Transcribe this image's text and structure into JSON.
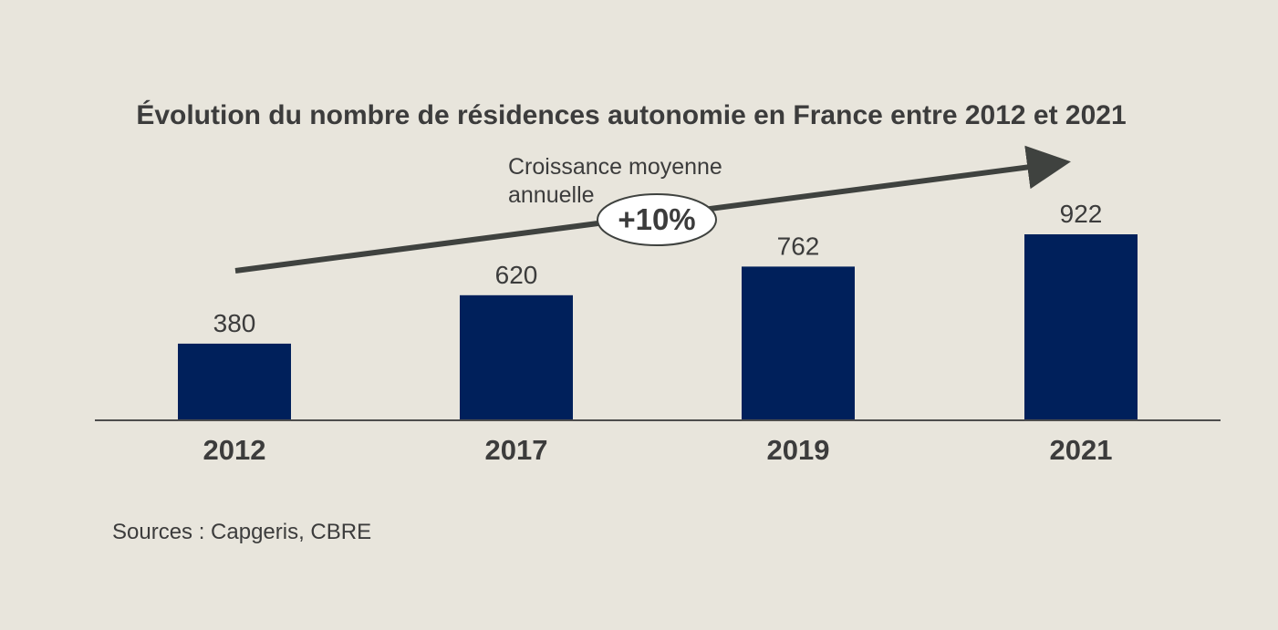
{
  "colors": {
    "background": "#e8e5dc",
    "bar": "#00205b",
    "text": "#3c3c3c",
    "arrow": "#3f423f",
    "axis": "#4d4d4d",
    "ellipse_fill": "#ffffff"
  },
  "chart_data": {
    "type": "bar",
    "title": "Évolution du nombre de résidences autonomie en France entre 2012 et 2021",
    "categories": [
      "2012",
      "2017",
      "2019",
      "2021"
    ],
    "values": [
      380,
      620,
      762,
      922
    ],
    "data_labels": [
      "380",
      "620",
      "762",
      "922"
    ],
    "ylim": [
      0,
      922
    ],
    "grid": false,
    "legend": "none",
    "annotation": {
      "text_line1": "Croissance moyenne",
      "text_line2": "annuelle",
      "value_label": "+10%",
      "arrow": "upward trend arrow from 2012 to 2021"
    }
  },
  "source": "Sources : Capgeris, CBRE"
}
